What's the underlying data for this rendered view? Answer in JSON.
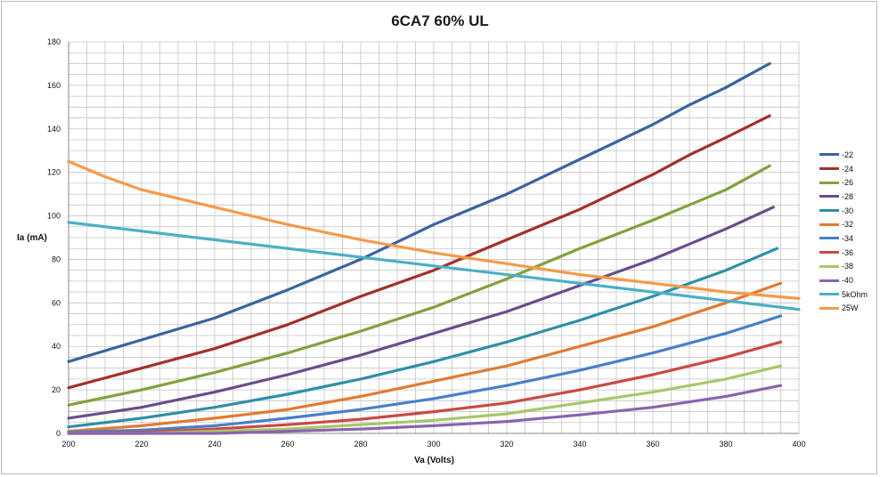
{
  "chart_data": {
    "type": "line",
    "title": "6CA7 60% UL",
    "xlabel": "Va (Volts)",
    "ylabel": "Ia (mA)",
    "xlim": [
      200,
      400
    ],
    "ylim": [
      0,
      180
    ],
    "x_ticks": [
      "200",
      "220",
      "240",
      "260",
      "280",
      "300",
      "320",
      "340",
      "360",
      "380",
      "400"
    ],
    "y_ticks": [
      "0",
      "20",
      "40",
      "60",
      "80",
      "100",
      "120",
      "140",
      "160",
      "180"
    ],
    "grid": true,
    "legend_position": "right",
    "series": [
      {
        "name": "-22",
        "color": "#3a64a0",
        "points": [
          [
            200,
            33
          ],
          [
            220,
            43
          ],
          [
            240,
            53
          ],
          [
            260,
            66
          ],
          [
            280,
            80
          ],
          [
            290,
            88
          ],
          [
            300,
            96
          ],
          [
            320,
            110
          ],
          [
            330,
            118
          ],
          [
            340,
            126
          ],
          [
            360,
            142
          ],
          [
            370,
            151
          ],
          [
            380,
            159
          ],
          [
            392,
            170
          ]
        ]
      },
      {
        "name": "-24",
        "color": "#a3302b",
        "points": [
          [
            200,
            21
          ],
          [
            220,
            30
          ],
          [
            240,
            39
          ],
          [
            260,
            50
          ],
          [
            280,
            63
          ],
          [
            300,
            75
          ],
          [
            320,
            89
          ],
          [
            340,
            103
          ],
          [
            360,
            119
          ],
          [
            370,
            128
          ],
          [
            380,
            136
          ],
          [
            392,
            146
          ]
        ]
      },
      {
        "name": "-26",
        "color": "#82a13b",
        "points": [
          [
            200,
            13
          ],
          [
            220,
            20
          ],
          [
            240,
            28
          ],
          [
            260,
            37
          ],
          [
            280,
            47
          ],
          [
            300,
            58
          ],
          [
            320,
            71
          ],
          [
            340,
            85
          ],
          [
            360,
            98
          ],
          [
            380,
            112
          ],
          [
            392,
            123
          ]
        ]
      },
      {
        "name": "-28",
        "color": "#6a4c8c",
        "points": [
          [
            200,
            7
          ],
          [
            220,
            12
          ],
          [
            240,
            19
          ],
          [
            260,
            27
          ],
          [
            280,
            36
          ],
          [
            300,
            46
          ],
          [
            320,
            56
          ],
          [
            340,
            68
          ],
          [
            360,
            80
          ],
          [
            380,
            94
          ],
          [
            393,
            104
          ]
        ]
      },
      {
        "name": "-30",
        "color": "#2f8fa8",
        "points": [
          [
            200,
            3
          ],
          [
            220,
            7
          ],
          [
            240,
            12
          ],
          [
            260,
            18
          ],
          [
            280,
            25
          ],
          [
            300,
            33
          ],
          [
            320,
            42
          ],
          [
            340,
            52
          ],
          [
            360,
            63
          ],
          [
            380,
            75
          ],
          [
            394,
            85
          ]
        ]
      },
      {
        "name": "-32",
        "color": "#e07b32",
        "points": [
          [
            200,
            1
          ],
          [
            220,
            3.5
          ],
          [
            240,
            7
          ],
          [
            260,
            11
          ],
          [
            280,
            17
          ],
          [
            300,
            24
          ],
          [
            320,
            31
          ],
          [
            340,
            40
          ],
          [
            360,
            49
          ],
          [
            380,
            60
          ],
          [
            395,
            69
          ]
        ]
      },
      {
        "name": "-34",
        "color": "#4a7fca",
        "points": [
          [
            200,
            0.5
          ],
          [
            220,
            1.5
          ],
          [
            240,
            3.5
          ],
          [
            260,
            7
          ],
          [
            280,
            11
          ],
          [
            300,
            16
          ],
          [
            320,
            22
          ],
          [
            340,
            29
          ],
          [
            360,
            37
          ],
          [
            380,
            46
          ],
          [
            395,
            54
          ]
        ]
      },
      {
        "name": "-36",
        "color": "#c94a45",
        "points": [
          [
            200,
            0
          ],
          [
            220,
            0.5
          ],
          [
            240,
            2
          ],
          [
            260,
            4
          ],
          [
            280,
            6.5
          ],
          [
            300,
            10
          ],
          [
            320,
            14
          ],
          [
            340,
            20
          ],
          [
            360,
            27
          ],
          [
            380,
            35
          ],
          [
            395,
            42
          ]
        ]
      },
      {
        "name": "-38",
        "color": "#a6c76a",
        "points": [
          [
            200,
            0
          ],
          [
            220,
            0
          ],
          [
            240,
            1
          ],
          [
            260,
            2
          ],
          [
            280,
            4
          ],
          [
            300,
            6
          ],
          [
            320,
            9
          ],
          [
            340,
            14
          ],
          [
            360,
            19
          ],
          [
            380,
            25
          ],
          [
            395,
            31
          ]
        ]
      },
      {
        "name": "-40",
        "color": "#8a64ad",
        "points": [
          [
            200,
            0
          ],
          [
            220,
            0
          ],
          [
            240,
            0
          ],
          [
            260,
            1
          ],
          [
            280,
            2
          ],
          [
            300,
            3.5
          ],
          [
            320,
            5.5
          ],
          [
            340,
            8.5
          ],
          [
            360,
            12
          ],
          [
            380,
            17
          ],
          [
            395,
            22
          ]
        ]
      },
      {
        "name": "5kOhm",
        "color": "#4bafc6",
        "points": [
          [
            200,
            97
          ],
          [
            400,
            57
          ]
        ]
      },
      {
        "name": "25W",
        "color": "#f59a4a",
        "points": [
          [
            200,
            125
          ],
          [
            210,
            118
          ],
          [
            220,
            112
          ],
          [
            240,
            104
          ],
          [
            260,
            96
          ],
          [
            280,
            89
          ],
          [
            300,
            83
          ],
          [
            320,
            78
          ],
          [
            340,
            73
          ],
          [
            360,
            69
          ],
          [
            380,
            65
          ],
          [
            400,
            62
          ]
        ]
      }
    ]
  }
}
